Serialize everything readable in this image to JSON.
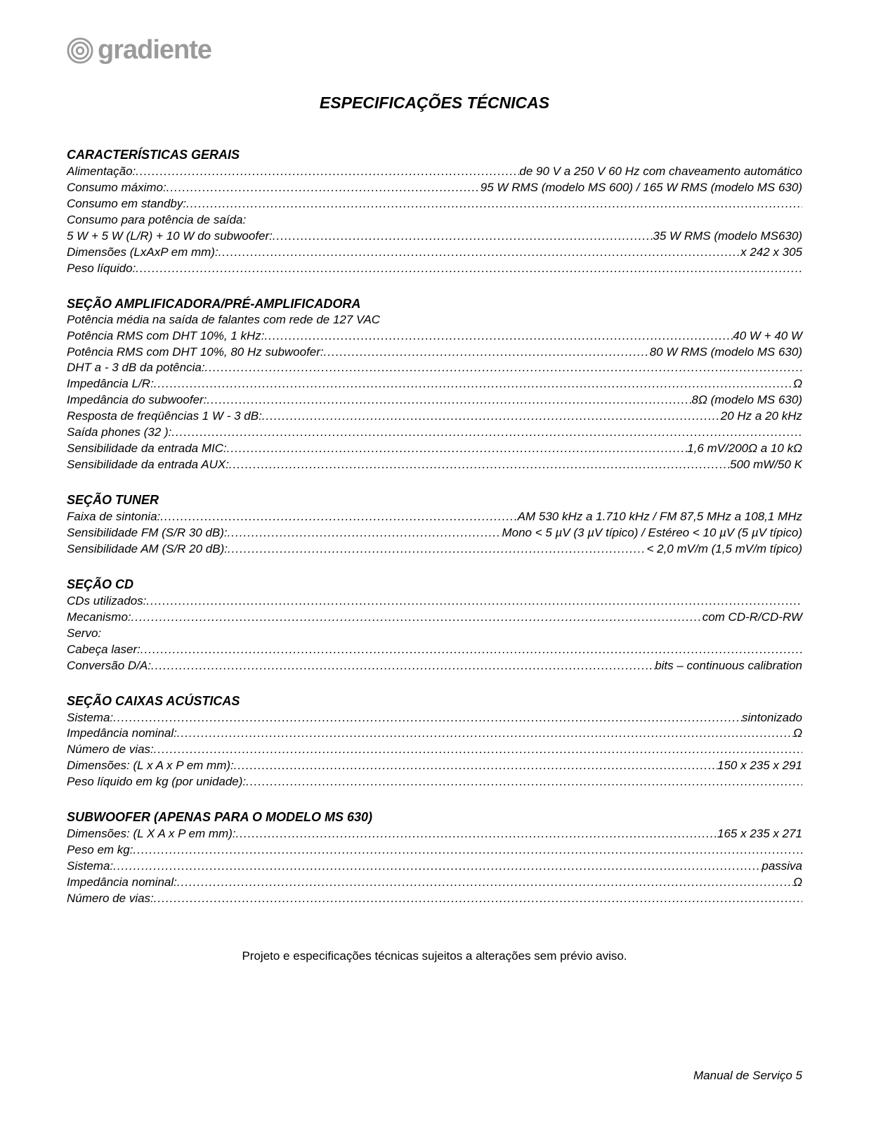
{
  "brand": "gradiente",
  "page_title": "ESPECIFICAÇÕES TÉCNICAS",
  "sections": {
    "gerais": {
      "heading": "CARACTERÍSTICAS GERAIS",
      "rows": [
        {
          "label": "Alimentação:",
          "value": "de 90 V a 250 V 60 Hz com chaveamento automático"
        },
        {
          "label": "Consumo máximo:",
          "value": "95 W RMS (modelo MS 600) / 165 W RMS (modelo MS 630)"
        },
        {
          "label": "Consumo em standby:",
          "value": " "
        },
        {
          "label": "Consumo para potência de saída:",
          "value": "",
          "nodots": true
        },
        {
          "label": "5 W + 5 W (L/R) + 10 W do subwoofer:",
          "value": "35 W RMS (modelo MS630)"
        },
        {
          "label": "Dimensões (LxAxP em mm): ",
          "value": " x 242 x 305"
        },
        {
          "label": "Peso líquido: ",
          "value": " "
        }
      ]
    },
    "amp": {
      "heading": "SEÇÃO AMPLIFICADORA/PRÉ-AMPLIFICADORA",
      "subheading": "Potência média na saída de falantes com rede de 127 VAC",
      "rows": [
        {
          "label": "Potência RMS com DHT 10%, 1 kHz: ",
          "value": "40 W + 40 W"
        },
        {
          "label": "Potência RMS com DHT 10%, 80 Hz subwoofer: ",
          "value": "80 W RMS (modelo MS 630)"
        },
        {
          "label": "DHT a - 3 dB da potência: ",
          "value": " "
        },
        {
          "label": "Impedância L/R:",
          "value": "Ω "
        },
        {
          "label": "Impedância do subwoofer:",
          "value": "8Ω  (modelo MS 630)"
        },
        {
          "label": "Resposta de freqüências 1 W - 3 dB:",
          "value": "20 Hz a 20 kHz"
        },
        {
          "label": "Saída phones (32 ): ",
          "value": " "
        },
        {
          "label": "Sensibilidade da entrada MIC:",
          "value": "1,6 mV/200Ω a 10 kΩ"
        },
        {
          "label": "Sensibilidade da entrada AUX:",
          "value": "   500 mW/50 K"
        }
      ]
    },
    "tuner": {
      "heading": "SEÇÃO TUNER",
      "rows": [
        {
          "label": "Faixa de sintonia: ",
          "value": "AM 530 kHz a 1.710 kHz / FM 87,5 MHz a 108,1 MHz"
        },
        {
          "label": "Sensibilidade FM (S/R 30 dB):",
          "value": "Mono < 5 µV (3 µV típico) / Estéreo < 10 µV (5 µV típico)"
        },
        {
          "label": "Sensibilidade AM (S/R 20 dB): ",
          "value": "< 2,0 mV/m (1,5 mV/m típico)"
        }
      ]
    },
    "cd": {
      "heading": "SEÇÃO CD",
      "rows": [
        {
          "label": "CDs utilizados:",
          "value": " "
        },
        {
          "label": "Mecanismo:",
          "value": "com CD-R/CD-RW"
        },
        {
          "label": "Servo:",
          "value": "",
          "nodots": true
        },
        {
          "label": "Cabeça laser:",
          "value": " "
        },
        {
          "label": "Conversão D/A:",
          "value": " bits – continuous calibration"
        }
      ]
    },
    "caixas": {
      "heading": "SEÇÃO CAIXAS ACÚSTICAS",
      "rows": [
        {
          "label": "Sistema:",
          "value": " sintonizado"
        },
        {
          "label": "Impedância nominal: ",
          "value": "Ω  "
        },
        {
          "label": "Número de vias:",
          "value": " "
        },
        {
          "label": "Dimensões: (L x A x P em mm): ",
          "value": "150  x 235 x 291"
        },
        {
          "label": "Peso líquido em kg (por unidade): ",
          "value": " "
        }
      ]
    },
    "subwoofer": {
      "heading": "SUBWOOFER (APENAS PARA O MODELO MS 630)",
      "rows": [
        {
          "label": "Dimensões: (L X A x P em mm): ",
          "value": "165  x 235 x 271"
        },
        {
          "label": "Peso em kg:",
          "value": " "
        },
        {
          "label": "Sistema:",
          "value": "passiva"
        },
        {
          "label": "Impedância nominal: ",
          "value": "Ω  "
        },
        {
          "label": "Número de vias:",
          "value": " "
        }
      ]
    }
  },
  "disclaimer": "Projeto e especificações técnicas sujeitos a alterações sem prévio aviso.",
  "footer": "Manual de Serviço 5"
}
